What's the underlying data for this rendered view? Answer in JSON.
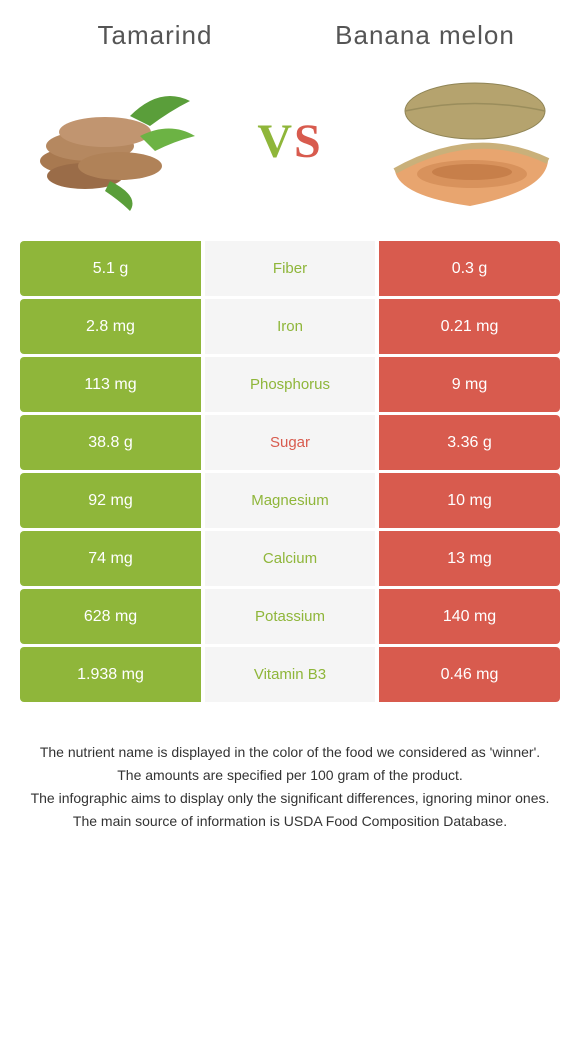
{
  "titles": {
    "left": "Tamarind",
    "right": "Banana melon"
  },
  "vs": {
    "v": "V",
    "s": "S"
  },
  "colors": {
    "left": "#8fb63a",
    "right": "#d85b4e",
    "mid_bg": "#f5f5f5",
    "vs_v": "#8fb63a",
    "vs_s": "#d85b4e"
  },
  "nutrients": [
    {
      "name": "Fiber",
      "left": "5.1 g",
      "right": "0.3 g",
      "winner": "left"
    },
    {
      "name": "Iron",
      "left": "2.8 mg",
      "right": "0.21 mg",
      "winner": "left"
    },
    {
      "name": "Phosphorus",
      "left": "113 mg",
      "right": "9 mg",
      "winner": "left"
    },
    {
      "name": "Sugar",
      "left": "38.8 g",
      "right": "3.36 g",
      "winner": "right"
    },
    {
      "name": "Magnesium",
      "left": "92 mg",
      "right": "10 mg",
      "winner": "left"
    },
    {
      "name": "Calcium",
      "left": "74 mg",
      "right": "13 mg",
      "winner": "left"
    },
    {
      "name": "Potassium",
      "left": "628 mg",
      "right": "140 mg",
      "winner": "left"
    },
    {
      "name": "Vitamin B3",
      "left": "1.938 mg",
      "right": "0.46 mg",
      "winner": "left"
    }
  ],
  "footer": [
    "The nutrient name is displayed in the color of the food we considered as 'winner'.",
    "The amounts are specified per 100 gram of the product.",
    "The infographic aims to display only the significant differences, ignoring minor ones.",
    "The main source of information is USDA Food Composition Database."
  ]
}
